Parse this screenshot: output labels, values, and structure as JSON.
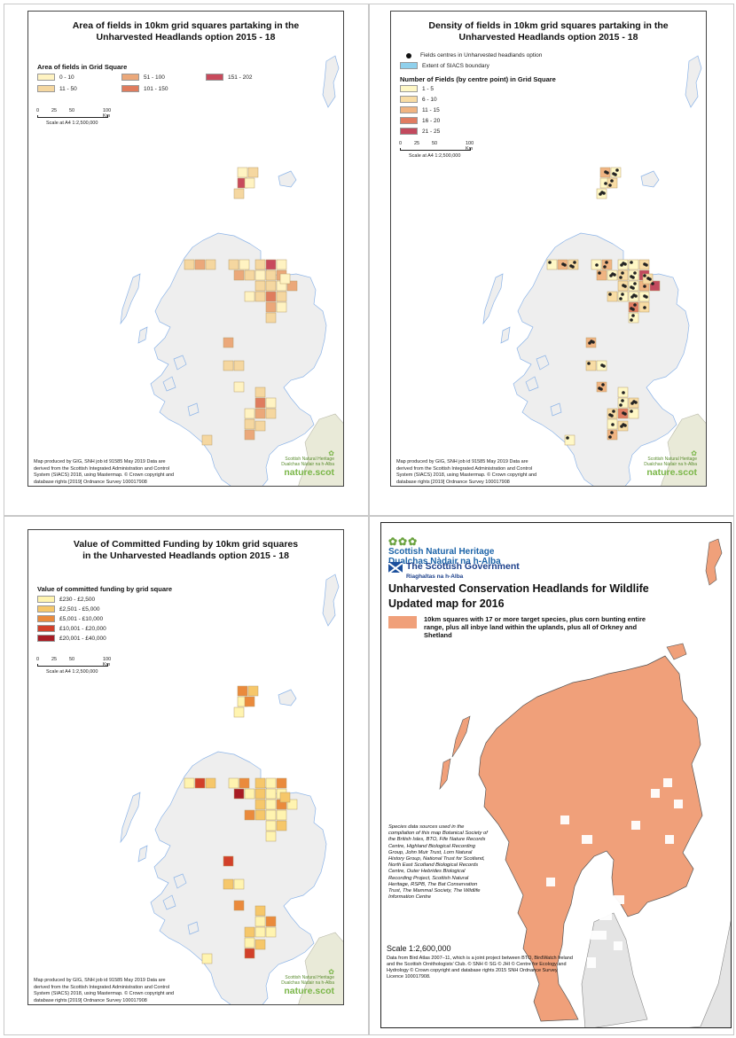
{
  "colors": {
    "land": "#eeeeee",
    "coast": "#8cb4e8",
    "england": "#e9ead8",
    "grid": "#c8c8c8",
    "hab": "#f0a07a"
  },
  "panel1": {
    "title_line1": "Area of fields in 10km grid squares partaking in the",
    "title_line2": "Unharvested Headlands option 2015 - 18",
    "legend_title": "Area of fields in Grid Square",
    "legend": [
      {
        "label": "0 - 10",
        "color": "#fff3c2"
      },
      {
        "label": "11 - 50",
        "color": "#f5d7a0"
      },
      {
        "label": "51 - 100",
        "color": "#eba87a"
      },
      {
        "label": "101 - 150",
        "color": "#df7c5e"
      },
      {
        "label": "151 - 202",
        "color": "#c84a5c"
      }
    ],
    "scale_ticks": [
      "0",
      "25",
      "50",
      "100 Km"
    ],
    "scale_caption": "Scale at A4 1:2,500,000",
    "credit": [
      "Map produced by GIG, SNH job id 91585 May 2019 Data are",
      "derived from the Scottish Integrated Administration and Control",
      "System (SIACS) 2018, using Mastermap. © Crown copyright and",
      "database rights [2019] Ordnance Survey 100017908"
    ],
    "logo": {
      "l1": "Scottish Natural Heritage",
      "l2": "Dualchas Nàdair na h-Alba",
      "l3": "nature.scot"
    }
  },
  "panel2": {
    "title_line1": "Density of fields in 10km grid squares partaking in the",
    "title_line2": "Unharvested Headlands option 2015 - 18",
    "dots_label": "Fields centres in Unharvested headlands option",
    "extent_label": "Extent of SIACS boundary",
    "extent_color": "#8fd0ec",
    "legend_title": "Number of Fields (by centre point) in Grid Square",
    "legend": [
      {
        "label": "1 - 5",
        "color": "#fff8c6"
      },
      {
        "label": "6 - 10",
        "color": "#f8dca4"
      },
      {
        "label": "11 - 15",
        "color": "#f0b482"
      },
      {
        "label": "16 - 20",
        "color": "#e07c62"
      },
      {
        "label": "21 - 25",
        "color": "#c24a5e"
      }
    ],
    "scale_ticks": [
      "0",
      "25",
      "50",
      "100 Km"
    ],
    "scale_caption": "Scale at A4 1:2,500,000",
    "credit": [
      "Map produced by GIG, SNH job id 91585 May 2019 Data are",
      "derived from the Scottish Integrated Administration and Control",
      "System (SIACS) 2018, using Mastermap. © Crown copyright and",
      "database rights [2019] Ordnance Survey 100017908"
    ],
    "logo": {
      "l1": "Scottish Natural Heritage",
      "l2": "Dualchas Nàdair na h-Alba",
      "l3": "nature.scot"
    }
  },
  "panel3": {
    "title_line1": "Value of Committed Funding by 10km grid squares",
    "title_line2": "in the Unharvested Headlands option 2015 - 18",
    "legend_title": "Value of committed funding by grid square",
    "legend": [
      {
        "label": "£230 - £2,500",
        "color": "#fff4b0"
      },
      {
        "label": "£2,501 - £5,000",
        "color": "#f6c76a"
      },
      {
        "label": "£5,001 - £10,000",
        "color": "#ea8a3c"
      },
      {
        "label": "£10,001 - £20,000",
        "color": "#d2402a"
      },
      {
        "label": "£20,001 - £40,000",
        "color": "#a81c24"
      }
    ],
    "scale_ticks": [
      "0",
      "25",
      "50",
      "100 Km"
    ],
    "scale_caption": "Scale at A4 1:2,500,000",
    "credit": [
      "Map produced by GIG, SNH job id 91585 May 2019 Data are",
      "derived from the Scottish Integrated Administration and Control",
      "System (SIACS) 2018, using Mastermap. © Crown copyright and",
      "database rights [2019] Ordnance Survey 100017908"
    ],
    "logo": {
      "l1": "Scottish Natural Heritage",
      "l2": "Dualchas Nàdair na h-Alba",
      "l3": "nature.scot"
    }
  },
  "panel4": {
    "org1_l1": "Scottish Natural Heritage",
    "org1_l2": "Dualchas Nàdair na h-Alba",
    "org2_l1": "The Scottish Government",
    "org2_l2": "Riaghaltas na h-Alba",
    "title_l1": "Unharvested Conservation Headlands for Wildlife",
    "title_l2": "Updated map for 2016",
    "desc": "10km squares with 17 or more target species, plus corn bunting entire range, plus all inbye land within the uplands, plus all of Orkney and Shetland",
    "sources": "Species data sources used in the compilation of this map Botanical Society of the British Isles, BTO, Fife Nature Records Centre, Highland Biological Recording Group, John Muir Trust, Lorn Natural History Group, National Trust for Scotland, North East Scotland Biological Records Centre, Outer Hebrides Biological Recording Project, Scottish Natural Heritage, RSPB, The Bat Conservation Trust, The Mammal Society, The Wildlife Information Centre",
    "scale": "Scale 1:2,600,000",
    "foot": "Data from Bird Atlas 2007–11, which is a joint project between BTO, BirdWatch Ireland and the Scottish Ornithologists' Club. © SNH © SG © JHI © Centre for Ecology and Hydrology © Crown copyright and database rights 2015 SNH Ordnance Survey Licence 100017908."
  }
}
